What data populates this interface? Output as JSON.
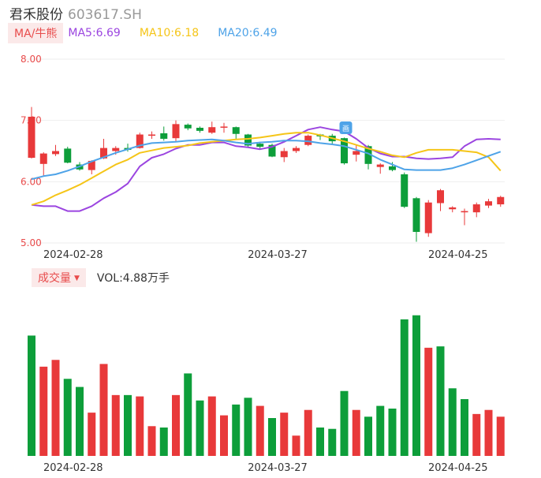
{
  "header": {
    "name": "君禾股份",
    "code": "603617.SH"
  },
  "ma": {
    "tag": "MA/牛熊",
    "items": [
      {
        "label": "MA5:6.69",
        "color": "#9b45e0"
      },
      {
        "label": "MA10:6.18",
        "color": "#f5c518"
      },
      {
        "label": "MA20:6.49",
        "color": "#4ea3e8"
      }
    ]
  },
  "volume_header": {
    "tag": "成交量",
    "value": "VOL:4.88万手"
  },
  "colors": {
    "up": "#e8393a",
    "down": "#0d9e3a",
    "grid": "#eeeeee",
    "axis_label": "#e84b4b"
  },
  "chart_data": [
    {
      "type": "candlestick",
      "title": "",
      "ylim": [
        5.0,
        8.0
      ],
      "yticks": [
        "8.00",
        "7.00",
        "6.00",
        "5.00"
      ],
      "xticks": [
        {
          "index": 3,
          "label": "2024-02-28"
        },
        {
          "index": 20,
          "label": "2024-03-27"
        },
        {
          "index": 35,
          "label": "2024-04-25"
        }
      ],
      "marker": {
        "index": 26,
        "glyph": "画"
      },
      "candles": [
        {
          "o": 6.39,
          "c": 7.06,
          "h": 7.22,
          "l": 6.38
        },
        {
          "o": 6.29,
          "c": 6.46,
          "h": 6.48,
          "l": 6.1
        },
        {
          "o": 6.45,
          "c": 6.5,
          "h": 6.6,
          "l": 6.42
        },
        {
          "o": 6.54,
          "c": 6.31,
          "h": 6.57,
          "l": 6.3
        },
        {
          "o": 6.28,
          "c": 6.2,
          "h": 6.32,
          "l": 6.18
        },
        {
          "o": 6.19,
          "c": 6.34,
          "h": 6.35,
          "l": 6.12
        },
        {
          "o": 6.38,
          "c": 6.55,
          "h": 6.7,
          "l": 6.37
        },
        {
          "o": 6.5,
          "c": 6.55,
          "h": 6.58,
          "l": 6.44
        },
        {
          "o": 6.55,
          "c": 6.52,
          "h": 6.62,
          "l": 6.49
        },
        {
          "o": 6.55,
          "c": 6.77,
          "h": 6.8,
          "l": 6.54
        },
        {
          "o": 6.75,
          "c": 6.77,
          "h": 6.82,
          "l": 6.7
        },
        {
          "o": 6.79,
          "c": 6.7,
          "h": 6.9,
          "l": 6.67
        },
        {
          "o": 6.71,
          "c": 6.94,
          "h": 7.0,
          "l": 6.66
        },
        {
          "o": 6.93,
          "c": 6.87,
          "h": 6.95,
          "l": 6.84
        },
        {
          "o": 6.88,
          "c": 6.83,
          "h": 6.9,
          "l": 6.8
        },
        {
          "o": 6.8,
          "c": 6.89,
          "h": 6.98,
          "l": 6.78
        },
        {
          "o": 6.89,
          "c": 6.9,
          "h": 6.96,
          "l": 6.8
        },
        {
          "o": 6.89,
          "c": 6.78,
          "h": 6.9,
          "l": 6.7
        },
        {
          "o": 6.77,
          "c": 6.59,
          "h": 6.78,
          "l": 6.57
        },
        {
          "o": 6.62,
          "c": 6.57,
          "h": 6.65,
          "l": 6.52
        },
        {
          "o": 6.6,
          "c": 6.41,
          "h": 6.62,
          "l": 6.4
        },
        {
          "o": 6.4,
          "c": 6.5,
          "h": 6.55,
          "l": 6.32
        },
        {
          "o": 6.5,
          "c": 6.55,
          "h": 6.58,
          "l": 6.47
        },
        {
          "o": 6.6,
          "c": 6.75,
          "h": 6.77,
          "l": 6.58
        },
        {
          "o": 6.77,
          "c": 6.74,
          "h": 6.78,
          "l": 6.68
        },
        {
          "o": 6.75,
          "c": 6.66,
          "h": 6.78,
          "l": 6.6
        },
        {
          "o": 6.71,
          "c": 6.3,
          "h": 6.72,
          "l": 6.28
        },
        {
          "o": 6.44,
          "c": 6.5,
          "h": 6.6,
          "l": 6.33
        },
        {
          "o": 6.58,
          "c": 6.29,
          "h": 6.6,
          "l": 6.2
        },
        {
          "o": 6.24,
          "c": 6.28,
          "h": 6.3,
          "l": 6.13
        },
        {
          "o": 6.25,
          "c": 6.19,
          "h": 6.32,
          "l": 6.17
        },
        {
          "o": 6.12,
          "c": 5.59,
          "h": 6.15,
          "l": 5.57
        },
        {
          "o": 5.73,
          "c": 5.18,
          "h": 5.75,
          "l": 5.02
        },
        {
          "o": 5.16,
          "c": 5.66,
          "h": 5.7,
          "l": 5.1
        },
        {
          "o": 5.65,
          "c": 5.86,
          "h": 5.88,
          "l": 5.52
        },
        {
          "o": 5.55,
          "c": 5.58,
          "h": 5.6,
          "l": 5.5
        },
        {
          "o": 5.5,
          "c": 5.52,
          "h": 5.56,
          "l": 5.29
        },
        {
          "o": 5.5,
          "c": 5.63,
          "h": 5.66,
          "l": 5.42
        },
        {
          "o": 5.61,
          "c": 5.68,
          "h": 5.72,
          "l": 5.57
        },
        {
          "o": 5.63,
          "c": 5.75,
          "h": 5.77,
          "l": 5.59
        }
      ],
      "series": [
        {
          "name": "MA5",
          "color": "#9b45e0",
          "values": [
            5.62,
            5.6,
            5.6,
            5.52,
            5.52,
            5.6,
            5.73,
            5.83,
            5.97,
            6.25,
            6.39,
            6.45,
            6.54,
            6.6,
            6.6,
            6.64,
            6.64,
            6.58,
            6.56,
            6.53,
            6.57,
            6.65,
            6.75,
            6.85,
            6.89,
            6.85,
            6.82,
            6.7,
            6.55,
            6.46,
            6.41,
            6.41,
            6.38,
            6.37,
            6.38,
            6.4,
            6.58,
            6.69,
            6.7,
            6.69
          ]
        },
        {
          "name": "MA10",
          "color": "#f5c518",
          "values": [
            5.62,
            5.68,
            5.78,
            5.86,
            5.95,
            6.06,
            6.17,
            6.28,
            6.36,
            6.47,
            6.51,
            6.55,
            6.57,
            6.59,
            6.63,
            6.65,
            6.67,
            6.69,
            6.7,
            6.72,
            6.75,
            6.78,
            6.8,
            6.8,
            6.76,
            6.71,
            6.66,
            6.6,
            6.54,
            6.49,
            6.43,
            6.4,
            6.47,
            6.52,
            6.52,
            6.52,
            6.5,
            6.48,
            6.4,
            6.18
          ]
        },
        {
          "name": "MA20",
          "color": "#4ea3e8",
          "values": [
            6.04,
            6.09,
            6.12,
            6.18,
            6.25,
            6.33,
            6.4,
            6.47,
            6.53,
            6.59,
            6.63,
            6.64,
            6.65,
            6.67,
            6.68,
            6.69,
            6.67,
            6.64,
            6.62,
            6.64,
            6.65,
            6.67,
            6.67,
            6.66,
            6.63,
            6.61,
            6.58,
            6.52,
            6.46,
            6.36,
            6.28,
            6.2,
            6.19,
            6.19,
            6.19,
            6.22,
            6.28,
            6.35,
            6.42,
            6.49
          ]
        }
      ]
    },
    {
      "type": "bar",
      "title": "",
      "ylim": [
        0,
        100
      ],
      "xticks": [
        {
          "index": 3,
          "label": "2024-02-28"
        },
        {
          "index": 20,
          "label": "2024-03-27"
        },
        {
          "index": 35,
          "label": "2024-04-25"
        }
      ],
      "volumes": [
        {
          "v": 89,
          "dir": "down"
        },
        {
          "v": 66,
          "dir": "up"
        },
        {
          "v": 71,
          "dir": "up"
        },
        {
          "v": 57,
          "dir": "down"
        },
        {
          "v": 51,
          "dir": "down"
        },
        {
          "v": 32,
          "dir": "up"
        },
        {
          "v": 68,
          "dir": "up"
        },
        {
          "v": 45,
          "dir": "up"
        },
        {
          "v": 45,
          "dir": "down"
        },
        {
          "v": 44,
          "dir": "up"
        },
        {
          "v": 22,
          "dir": "up"
        },
        {
          "v": 21,
          "dir": "down"
        },
        {
          "v": 45,
          "dir": "up"
        },
        {
          "v": 61,
          "dir": "down"
        },
        {
          "v": 41,
          "dir": "down"
        },
        {
          "v": 44,
          "dir": "up"
        },
        {
          "v": 30,
          "dir": "up"
        },
        {
          "v": 38,
          "dir": "down"
        },
        {
          "v": 43,
          "dir": "down"
        },
        {
          "v": 37,
          "dir": "up"
        },
        {
          "v": 28,
          "dir": "down"
        },
        {
          "v": 32,
          "dir": "up"
        },
        {
          "v": 15,
          "dir": "up"
        },
        {
          "v": 34,
          "dir": "up"
        },
        {
          "v": 21,
          "dir": "down"
        },
        {
          "v": 20,
          "dir": "down"
        },
        {
          "v": 48,
          "dir": "down"
        },
        {
          "v": 34,
          "dir": "up"
        },
        {
          "v": 29,
          "dir": "down"
        },
        {
          "v": 37,
          "dir": "down"
        },
        {
          "v": 35,
          "dir": "down"
        },
        {
          "v": 101,
          "dir": "down"
        },
        {
          "v": 104,
          "dir": "down"
        },
        {
          "v": 80,
          "dir": "up"
        },
        {
          "v": 81,
          "dir": "down"
        },
        {
          "v": 50,
          "dir": "down"
        },
        {
          "v": 42,
          "dir": "down"
        },
        {
          "v": 31,
          "dir": "up"
        },
        {
          "v": 34,
          "dir": "up"
        },
        {
          "v": 29,
          "dir": "up"
        }
      ]
    }
  ]
}
